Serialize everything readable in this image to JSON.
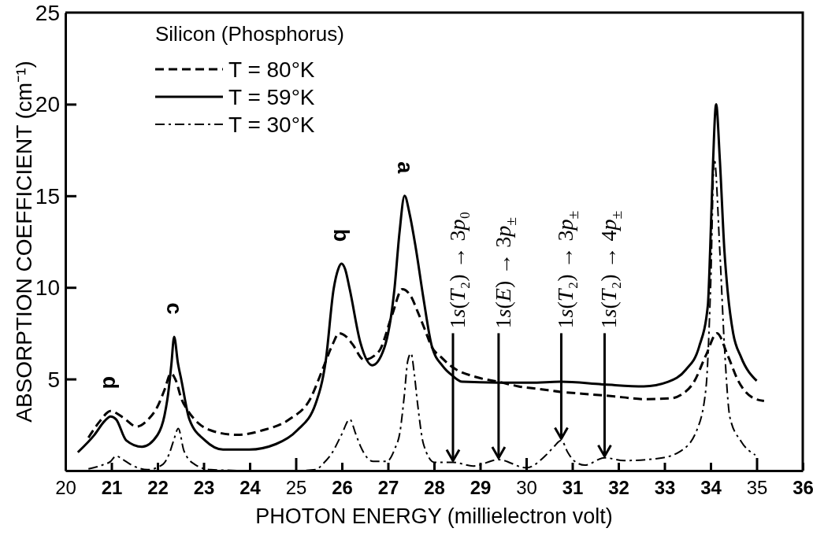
{
  "chart_data": {
    "type": "line",
    "xlabel": "PHOTON ENERGY (millielectron volt)",
    "ylabel": "ABSORPTION COEFFICIENT (cm⁻¹)",
    "legend_title": "Silicon (Phosphorus)",
    "legend": "top left",
    "xlim": [
      20,
      36
    ],
    "xticks": [
      20,
      21,
      22,
      23,
      24,
      25,
      26,
      27,
      28,
      29,
      30,
      31,
      32,
      33,
      34,
      35,
      36
    ],
    "ylim": [
      0,
      25
    ],
    "yticks": [
      5,
      10,
      15,
      20,
      25
    ],
    "annotations": [
      {
        "text": "d",
        "x": 20.98,
        "y": 3.25
      },
      {
        "text": "c",
        "x": 22.36,
        "y": 7.3
      },
      {
        "text": "b",
        "x": 25.99,
        "y": 11.3
      },
      {
        "text": "a",
        "x": 27.36,
        "y": 15.0
      },
      {
        "text": "1s(T₂) → 3p₀",
        "x": 28.41,
        "y": 0.45
      },
      {
        "text": "1s(E) → 3p$_{±}$",
        "x": 29.4,
        "y": 0.6
      },
      {
        "text": "1s(T₂) → 3p$_{±}$",
        "x": 30.76,
        "y": 1.65
      },
      {
        "text": "1s(T₂) → 4p$_{±}$",
        "x": 31.7,
        "y": 0.7
      }
    ],
    "series": [
      {
        "name": "T = 80°K",
        "color": "#000000",
        "line_style": "dashed",
        "x": [
          20.5,
          20.75,
          20.98,
          21.25,
          21.55,
          21.8,
          22.0,
          22.15,
          22.29,
          22.4,
          22.52,
          22.65,
          22.8,
          23.15,
          23.72,
          24.28,
          24.86,
          25.31,
          25.6,
          25.8,
          25.94,
          26.1,
          26.23,
          26.48,
          26.8,
          27.09,
          27.31,
          27.5,
          27.64,
          27.8,
          27.95,
          28.15,
          28.37,
          28.92,
          29.4,
          29.83,
          30.3,
          30.74,
          31.2,
          31.7,
          32.1,
          32.55,
          33.15,
          33.4,
          33.63,
          33.9,
          34.14,
          34.37,
          34.6,
          34.9,
          35.16
        ],
        "values": [
          1.8,
          2.7,
          3.25,
          2.9,
          2.4,
          2.8,
          3.5,
          4.4,
          5.3,
          4.9,
          3.9,
          3.3,
          2.8,
          2.2,
          1.95,
          2.2,
          2.8,
          3.9,
          5.65,
          6.9,
          7.5,
          7.3,
          6.9,
          6.05,
          6.5,
          8.5,
          9.9,
          9.5,
          8.7,
          7.7,
          6.75,
          6.2,
          5.7,
          5.1,
          4.85,
          4.6,
          4.45,
          4.3,
          4.2,
          4.1,
          4.0,
          3.9,
          3.95,
          4.2,
          4.8,
          6.3,
          7.5,
          6.3,
          4.9,
          4.0,
          3.8
        ]
      },
      {
        "name": "T = 59°K",
        "color": "#000000",
        "line_style": "solid",
        "x": [
          20.27,
          20.63,
          20.85,
          20.98,
          21.1,
          21.32,
          21.66,
          22.0,
          22.15,
          22.23,
          22.3,
          22.36,
          22.44,
          22.52,
          22.69,
          23.03,
          23.42,
          23.99,
          24.57,
          25.03,
          25.43,
          25.65,
          25.82,
          25.92,
          25.99,
          26.07,
          26.17,
          26.4,
          26.66,
          26.92,
          27.14,
          27.25,
          27.36,
          27.47,
          27.6,
          27.77,
          27.95,
          28.19,
          28.39,
          28.61,
          29.4,
          30.1,
          30.74,
          31.7,
          32.55,
          33.08,
          33.46,
          33.75,
          33.94,
          33.99,
          34.05,
          34.12,
          34.2,
          34.3,
          34.37,
          34.49,
          34.66,
          35.0
        ],
        "values": [
          1.0,
          1.95,
          2.7,
          2.95,
          2.8,
          1.65,
          1.3,
          1.95,
          3.0,
          4.2,
          5.8,
          7.3,
          5.9,
          4.9,
          2.8,
          1.65,
          1.15,
          1.15,
          1.45,
          2.2,
          3.65,
          6.0,
          9.9,
          11.0,
          11.3,
          11.0,
          9.9,
          7.0,
          5.75,
          6.7,
          9.9,
          13.0,
          15.0,
          14.0,
          12.2,
          9.4,
          6.8,
          5.7,
          5.2,
          4.85,
          4.8,
          4.8,
          4.85,
          4.7,
          4.6,
          4.85,
          5.5,
          6.75,
          9.0,
          12.0,
          16.6,
          20.0,
          17.0,
          12.0,
          9.8,
          7.5,
          6.2,
          4.9
        ]
      },
      {
        "name": "T = 30°K",
        "color": "#000000",
        "line_style": "dashdot",
        "x": [
          20.5,
          20.8,
          20.98,
          21.1,
          21.25,
          21.44,
          21.78,
          22.12,
          22.25,
          22.35,
          22.45,
          22.57,
          22.68,
          22.8,
          23.15,
          24.0,
          25.0,
          25.43,
          25.6,
          25.77,
          25.99,
          26.17,
          26.3,
          26.4,
          26.68,
          26.97,
          27.15,
          27.26,
          27.35,
          27.43,
          27.5,
          27.57,
          27.64,
          27.77,
          28.01,
          28.41,
          28.85,
          29.4,
          30.0,
          30.43,
          30.6,
          30.76,
          30.9,
          31.03,
          31.27,
          31.7,
          32.12,
          32.84,
          33.34,
          33.7,
          33.9,
          34.0,
          34.08,
          34.2,
          34.3,
          34.42,
          34.66,
          34.97
        ],
        "values": [
          0.1,
          0.3,
          0.5,
          0.8,
          0.6,
          0.3,
          0.05,
          0.35,
          0.9,
          1.65,
          2.3,
          1.1,
          0.6,
          0.35,
          0.05,
          0.0,
          0.0,
          0.05,
          0.4,
          0.9,
          1.95,
          2.8,
          2.0,
          1.35,
          0.5,
          0.5,
          1.2,
          2.1,
          4.0,
          6.0,
          6.4,
          5.3,
          3.7,
          1.45,
          0.45,
          0.45,
          0.25,
          0.6,
          0.15,
          0.85,
          1.3,
          1.65,
          1.0,
          0.55,
          0.3,
          0.7,
          0.55,
          0.65,
          1.05,
          2.2,
          4.5,
          10.0,
          17.0,
          12.0,
          6.8,
          2.9,
          1.6,
          0.85
        ]
      }
    ]
  }
}
